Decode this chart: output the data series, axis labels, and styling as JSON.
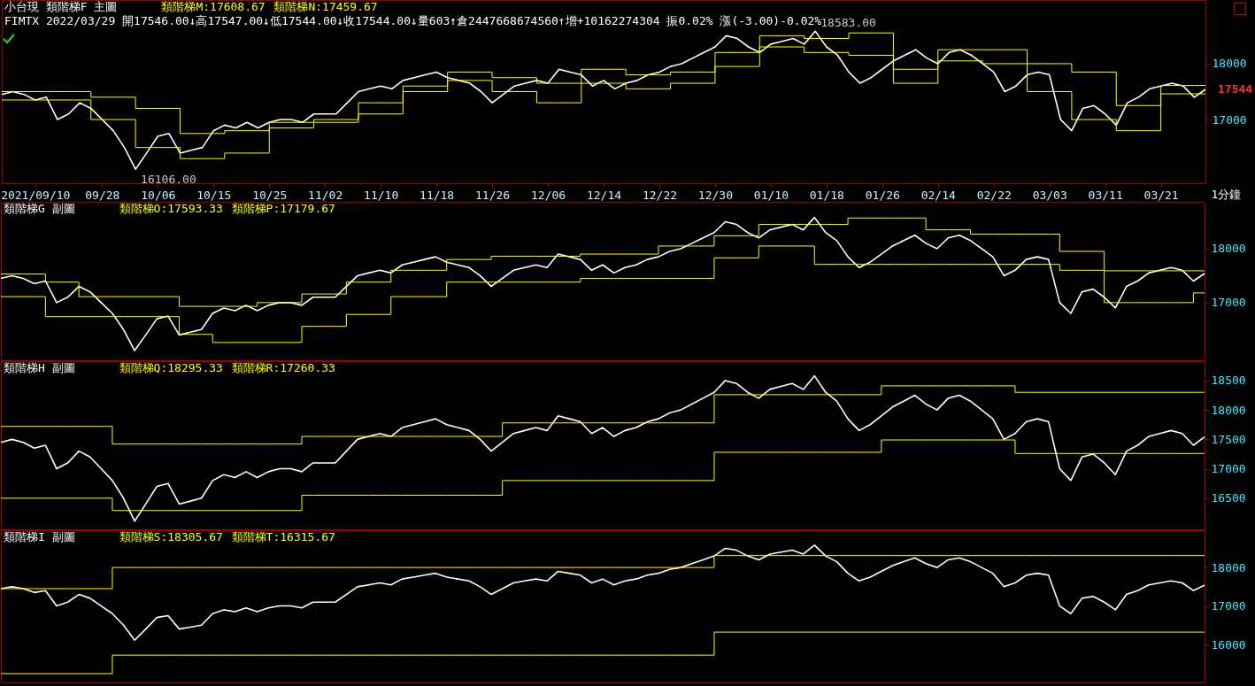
{
  "chart_data": [
    {
      "type": "line",
      "title": "小台現 類階梯F 主圖",
      "subtitle": "FIMTX 2022/03/29 開17546.00↓高17547.00↓低17544.00↓收17544.00↓量603↑倉2447668674560↑增+10162274304 振0.02% 漲(-3.00)-0.02%",
      "xlabel": "1分鐘",
      "categories": [
        null,
        null,
        null,
        "2021/09/10",
        null,
        null,
        null,
        null,
        null,
        "09/28",
        null,
        null,
        null,
        null,
        "10/06",
        null,
        null,
        null,
        null,
        "10/15",
        null,
        null,
        null,
        null,
        "10/25",
        null,
        null,
        null,
        null,
        "11/02",
        null,
        null,
        null,
        null,
        "11/10",
        null,
        null,
        null,
        null,
        "11/18",
        null,
        null,
        null,
        null,
        "11/26",
        null,
        null,
        null,
        null,
        "12/06",
        null,
        null,
        null,
        null,
        "12/14",
        null,
        null,
        null,
        null,
        "12/22",
        null,
        null,
        null,
        null,
        "12/30",
        null,
        null,
        null,
        null,
        "01/10",
        null,
        null,
        null,
        null,
        "01/18",
        null,
        null,
        null,
        null,
        "01/26",
        null,
        null,
        null,
        null,
        "02/14",
        null,
        null,
        null,
        null,
        "02/22",
        null,
        null,
        null,
        null,
        "03/03",
        null,
        null,
        null,
        null,
        "03/11",
        null,
        null,
        null,
        null,
        "03/21",
        null,
        null,
        null,
        null
      ],
      "series": [
        {
          "color": "#ffffff",
          "values": [
            17450,
            17500,
            17450,
            17350,
            17400,
            17000,
            17100,
            17300,
            17200,
            17000,
            16800,
            16500,
            16110,
            16400,
            16700,
            16750,
            16400,
            16450,
            16500,
            16800,
            16900,
            16850,
            16950,
            16850,
            16950,
            17000,
            17000,
            16950,
            17100,
            17100,
            17100,
            17300,
            17500,
            17550,
            17600,
            17550,
            17700,
            17750,
            17800,
            17850,
            17750,
            17700,
            17650,
            17500,
            17300,
            17450,
            17600,
            17650,
            17700,
            17650,
            17900,
            17850,
            17800,
            17600,
            17700,
            17550,
            17650,
            17700,
            17800,
            17850,
            17950,
            18000,
            18100,
            18200,
            18300,
            18500,
            18450,
            18300,
            18200,
            18350,
            18400,
            18450,
            18350,
            18580,
            18300,
            18150,
            17850,
            17650,
            17750,
            17900,
            18050,
            18150,
            18250,
            18100,
            18000,
            18200,
            18250,
            18150,
            18000,
            17850,
            17500,
            17600,
            17800,
            17850,
            17800,
            17000,
            16800,
            17200,
            17250,
            17100,
            16900,
            17300,
            17400,
            17550,
            17600,
            17650,
            17600,
            17400,
            17540
          ]
        },
        {
          "type": "step",
          "color": "#ffff00",
          "values": [
            17500,
            17500,
            17500,
            17500,
            17500,
            17500,
            17500,
            17500,
            17400,
            17400,
            17400,
            17400,
            17200,
            17200,
            17200,
            17200,
            16750,
            16750,
            16750,
            16750,
            16800,
            16800,
            16800,
            16800,
            16950,
            16950,
            16950,
            16950,
            17000,
            17000,
            17000,
            17000,
            17300,
            17300,
            17300,
            17300,
            17600,
            17600,
            17600,
            17600,
            17850,
            17850,
            17850,
            17850,
            17750,
            17750,
            17750,
            17750,
            17650,
            17650,
            17650,
            17650,
            17900,
            17900,
            17900,
            17900,
            17800,
            17800,
            17800,
            17800,
            17850,
            17850,
            17850,
            17850,
            18200,
            18200,
            18200,
            18200,
            18500,
            18500,
            18500,
            18500,
            18450,
            18450,
            18450,
            18450,
            18550,
            18550,
            18550,
            18550,
            17900,
            17900,
            17900,
            17900,
            18250,
            18250,
            18250,
            18250,
            18250,
            18250,
            18250,
            18250,
            18000,
            18000,
            18000,
            18000,
            17850,
            17850,
            17850,
            17850,
            17250,
            17250,
            17250,
            17250,
            17610,
            17610,
            17610,
            17610,
            17610
          ]
        },
        {
          "type": "step",
          "color": "#ffff00",
          "values": [
            17350,
            17350,
            17350,
            17350,
            17350,
            17350,
            17350,
            17350,
            17000,
            17000,
            17000,
            17000,
            16500,
            16500,
            16500,
            16500,
            16300,
            16300,
            16300,
            16300,
            16400,
            16400,
            16400,
            16400,
            16850,
            16850,
            16850,
            16850,
            16950,
            16950,
            16950,
            16950,
            17100,
            17100,
            17100,
            17100,
            17500,
            17500,
            17500,
            17500,
            17700,
            17700,
            17700,
            17700,
            17500,
            17500,
            17500,
            17500,
            17300,
            17300,
            17300,
            17300,
            17650,
            17650,
            17650,
            17650,
            17550,
            17550,
            17550,
            17550,
            17650,
            17650,
            17650,
            17650,
            17950,
            17950,
            17950,
            17950,
            18300,
            18300,
            18300,
            18300,
            18200,
            18200,
            18200,
            18200,
            18150,
            18150,
            18150,
            18150,
            17650,
            17650,
            17650,
            17650,
            18050,
            18050,
            18050,
            18050,
            18000,
            18000,
            18000,
            18000,
            17500,
            17500,
            17500,
            17500,
            17000,
            17000,
            17000,
            17000,
            16800,
            16800,
            16800,
            16800,
            17460,
            17460,
            17460,
            17460,
            17460
          ]
        }
      ],
      "ylim": [
        15860,
        19140
      ],
      "yticks": [
        17000,
        18000
      ],
      "annotations": [
        "類階梯M:17608.67",
        "類階梯N:17459.67",
        "18583.00",
        "16106.00",
        "17544"
      ]
    },
    {
      "type": "line",
      "title": "類階梯G 副圖",
      "tick_labels": "y",
      "categories": [
        null,
        null,
        null,
        null,
        null,
        null,
        null,
        null,
        null,
        null,
        null,
        null,
        null,
        null,
        null,
        null,
        null,
        null,
        null,
        null,
        null,
        null,
        null,
        null,
        null,
        null,
        null,
        null,
        null,
        null,
        null,
        null,
        null,
        null,
        null,
        null,
        null,
        null,
        null,
        null,
        null,
        null,
        null,
        null,
        null,
        null,
        null,
        null,
        null,
        null,
        null,
        null,
        null,
        null,
        null,
        null,
        null,
        null,
        null,
        null,
        null,
        null,
        null,
        null,
        null,
        null,
        null,
        null,
        null,
        null,
        null,
        null,
        null,
        null,
        null,
        null,
        null,
        null,
        null,
        null,
        null,
        null,
        null,
        null,
        null,
        null,
        null,
        null,
        null,
        null,
        null,
        null,
        null,
        null,
        null,
        null,
        null,
        null,
        null,
        null,
        null,
        null,
        null,
        null,
        null,
        null,
        null,
        null,
        null
      ],
      "series": [
        {
          "color": "#ffffff",
          "values": [
            17450,
            17500,
            17450,
            17350,
            17400,
            17000,
            17100,
            17300,
            17200,
            17000,
            16800,
            16500,
            16110,
            16400,
            16700,
            16750,
            16400,
            16450,
            16500,
            16800,
            16900,
            16850,
            16950,
            16850,
            16950,
            17000,
            17000,
            16950,
            17100,
            17100,
            17100,
            17300,
            17500,
            17550,
            17600,
            17550,
            17700,
            17750,
            17800,
            17850,
            17750,
            17700,
            17650,
            17500,
            17300,
            17450,
            17600,
            17650,
            17700,
            17650,
            17900,
            17850,
            17800,
            17600,
            17700,
            17550,
            17650,
            17700,
            17800,
            17850,
            17950,
            18000,
            18100,
            18200,
            18300,
            18500,
            18450,
            18300,
            18200,
            18350,
            18400,
            18450,
            18350,
            18580,
            18300,
            18150,
            17850,
            17650,
            17750,
            17900,
            18050,
            18150,
            18250,
            18100,
            18000,
            18200,
            18250,
            18150,
            18000,
            17850,
            17500,
            17600,
            17800,
            17850,
            17800,
            17000,
            16800,
            17200,
            17250,
            17100,
            16900,
            17300,
            17400,
            17550,
            17600,
            17650,
            17600,
            17400,
            17540
          ]
        },
        {
          "type": "step",
          "color": "#ffff00",
          "values": [
            17530,
            17530,
            17530,
            17530,
            17380,
            17380,
            17380,
            17110,
            17110,
            17110,
            17110,
            17110,
            17110,
            17110,
            17110,
            17110,
            16930,
            16930,
            16930,
            16930,
            16930,
            16930,
            16930,
            17000,
            17000,
            17000,
            17000,
            17160,
            17160,
            17160,
            17160,
            17380,
            17380,
            17380,
            17380,
            17600,
            17600,
            17600,
            17600,
            17600,
            17800,
            17800,
            17800,
            17800,
            17860,
            17860,
            17860,
            17860,
            17860,
            17860,
            17860,
            17860,
            17900,
            17900,
            17900,
            17900,
            17900,
            17900,
            17900,
            18050,
            18050,
            18050,
            18050,
            18050,
            18240,
            18240,
            18240,
            18240,
            18450,
            18450,
            18450,
            18450,
            18450,
            18450,
            18450,
            18450,
            18570,
            18570,
            18570,
            18570,
            18570,
            18570,
            18570,
            18350,
            18350,
            18350,
            18350,
            18270,
            18270,
            18270,
            18270,
            18270,
            18270,
            18270,
            18270,
            17950,
            17950,
            17950,
            17950,
            17590,
            17590,
            17590,
            17590,
            17590,
            17590,
            17590,
            17590,
            17590,
            17590
          ]
        },
        {
          "type": "step",
          "color": "#ffff00",
          "values": [
            17110,
            17110,
            17110,
            17110,
            16740,
            16740,
            16740,
            16740,
            16740,
            16740,
            16740,
            16740,
            16740,
            16740,
            16740,
            16740,
            16410,
            16410,
            16410,
            16260,
            16260,
            16260,
            16260,
            16260,
            16260,
            16260,
            16260,
            16560,
            16560,
            16560,
            16560,
            16780,
            16780,
            16780,
            16780,
            17110,
            17110,
            17110,
            17110,
            17110,
            17380,
            17380,
            17380,
            17380,
            17380,
            17380,
            17380,
            17380,
            17380,
            17380,
            17380,
            17380,
            17450,
            17450,
            17450,
            17450,
            17450,
            17450,
            17450,
            17450,
            17450,
            17450,
            17450,
            17450,
            17830,
            17830,
            17830,
            17830,
            18050,
            18050,
            18050,
            18050,
            18050,
            17710,
            17710,
            17710,
            17710,
            17710,
            17710,
            17710,
            17710,
            17710,
            17710,
            17710,
            17710,
            17710,
            17710,
            17710,
            17710,
            17710,
            17710,
            17710,
            17710,
            17710,
            17710,
            17600,
            17600,
            17600,
            17600,
            17000,
            17000,
            17000,
            17000,
            17000,
            17000,
            17000,
            17000,
            17180,
            17180
          ]
        }
      ],
      "ylim": [
        15930,
        18870
      ],
      "yticks": [
        17000,
        18000
      ],
      "annotations": [
        "類階梯O:17593.33",
        "類階梯P:17179.67"
      ]
    },
    {
      "type": "line",
      "title": "類階梯H 副圖",
      "tick_labels": "y",
      "categories": [
        null,
        null,
        null,
        null,
        null,
        null,
        null,
        null,
        null,
        null,
        null,
        null,
        null,
        null,
        null,
        null,
        null,
        null,
        null,
        null,
        null,
        null,
        null,
        null,
        null,
        null,
        null,
        null,
        null,
        null,
        null,
        null,
        null,
        null,
        null,
        null,
        null,
        null,
        null,
        null,
        null,
        null,
        null,
        null,
        null,
        null,
        null,
        null,
        null,
        null,
        null,
        null,
        null,
        null,
        null,
        null,
        null,
        null,
        null,
        null,
        null,
        null,
        null,
        null,
        null,
        null,
        null,
        null,
        null,
        null,
        null,
        null,
        null,
        null,
        null,
        null,
        null,
        null,
        null,
        null,
        null,
        null,
        null,
        null,
        null,
        null,
        null,
        null,
        null,
        null,
        null,
        null,
        null,
        null,
        null,
        null,
        null,
        null,
        null,
        null,
        null,
        null,
        null,
        null,
        null,
        null,
        null,
        null,
        null
      ],
      "series": [
        {
          "color": "#ffffff",
          "values": [
            17450,
            17500,
            17450,
            17350,
            17400,
            17000,
            17100,
            17300,
            17200,
            17000,
            16800,
            16500,
            16110,
            16400,
            16700,
            16750,
            16400,
            16450,
            16500,
            16800,
            16900,
            16850,
            16950,
            16850,
            16950,
            17000,
            17000,
            16950,
            17100,
            17100,
            17100,
            17300,
            17500,
            17550,
            17600,
            17550,
            17700,
            17750,
            17800,
            17850,
            17750,
            17700,
            17650,
            17500,
            17300,
            17450,
            17600,
            17650,
            17700,
            17650,
            17900,
            17850,
            17800,
            17600,
            17700,
            17550,
            17650,
            17700,
            17800,
            17850,
            17950,
            18000,
            18100,
            18200,
            18300,
            18500,
            18450,
            18300,
            18200,
            18350,
            18400,
            18450,
            18350,
            18580,
            18300,
            18150,
            17850,
            17650,
            17750,
            17900,
            18050,
            18150,
            18250,
            18100,
            18000,
            18200,
            18250,
            18150,
            18000,
            17850,
            17500,
            17600,
            17800,
            17850,
            17800,
            17000,
            16800,
            17200,
            17250,
            17100,
            16900,
            17300,
            17400,
            17550,
            17600,
            17650,
            17600,
            17400,
            17540
          ]
        },
        {
          "type": "step",
          "color": "#ffff00",
          "values": [
            17720,
            17720,
            17720,
            17720,
            17720,
            17720,
            17720,
            17720,
            17720,
            17720,
            17420,
            17420,
            17420,
            17420,
            17420,
            17420,
            17420,
            17420,
            17420,
            17420,
            17420,
            17420,
            17420,
            17420,
            17420,
            17420,
            17420,
            17550,
            17550,
            17550,
            17550,
            17550,
            17550,
            17550,
            17550,
            17550,
            17550,
            17550,
            17550,
            17550,
            17550,
            17550,
            17550,
            17550,
            17550,
            17780,
            17780,
            17780,
            17780,
            17780,
            17780,
            17780,
            17780,
            17780,
            17780,
            17780,
            17780,
            17780,
            17780,
            17780,
            17780,
            17780,
            17780,
            17780,
            18260,
            18260,
            18260,
            18260,
            18260,
            18260,
            18260,
            18260,
            18260,
            18260,
            18260,
            18260,
            18260,
            18260,
            18260,
            18410,
            18410,
            18410,
            18410,
            18410,
            18410,
            18410,
            18410,
            18410,
            18410,
            18410,
            18410,
            18300,
            18300,
            18300,
            18300,
            18300,
            18300,
            18300,
            18300,
            18300,
            18300,
            18300,
            18300,
            18300,
            18300,
            18300,
            18300,
            18300,
            18300
          ]
        },
        {
          "type": "step",
          "color": "#ffff00",
          "values": [
            16500,
            16500,
            16500,
            16500,
            16500,
            16500,
            16500,
            16500,
            16500,
            16500,
            16290,
            16290,
            16290,
            16290,
            16290,
            16290,
            16290,
            16290,
            16290,
            16290,
            16290,
            16290,
            16290,
            16290,
            16290,
            16290,
            16290,
            16550,
            16550,
            16550,
            16550,
            16550,
            16550,
            16550,
            16550,
            16550,
            16550,
            16550,
            16550,
            16550,
            16550,
            16550,
            16550,
            16550,
            16550,
            16800,
            16800,
            16800,
            16800,
            16800,
            16800,
            16800,
            16800,
            16800,
            16800,
            16800,
            16800,
            16800,
            16800,
            16800,
            16800,
            16800,
            16800,
            16800,
            17280,
            17280,
            17280,
            17280,
            17280,
            17280,
            17280,
            17280,
            17280,
            17280,
            17280,
            17280,
            17280,
            17280,
            17280,
            17490,
            17490,
            17490,
            17490,
            17490,
            17490,
            17490,
            17490,
            17490,
            17490,
            17490,
            17490,
            17260,
            17260,
            17260,
            17260,
            17260,
            17260,
            17260,
            17260,
            17260,
            17260,
            17260,
            17260,
            17260,
            17260,
            17260,
            17260,
            17260,
            17260
          ]
        }
      ],
      "ylim": [
        15970,
        18830
      ],
      "yticks": [
        16500,
        17000,
        17500,
        18000,
        18500
      ],
      "annotations": [
        "類階梯Q:18295.33",
        "類階梯R:17260.33"
      ]
    },
    {
      "type": "line",
      "title": "類階梯I 副圖",
      "tick_labels": "y",
      "categories": [
        null,
        null,
        null,
        null,
        null,
        null,
        null,
        null,
        null,
        null,
        null,
        null,
        null,
        null,
        null,
        null,
        null,
        null,
        null,
        null,
        null,
        null,
        null,
        null,
        null,
        null,
        null,
        null,
        null,
        null,
        null,
        null,
        null,
        null,
        null,
        null,
        null,
        null,
        null,
        null,
        null,
        null,
        null,
        null,
        null,
        null,
        null,
        null,
        null,
        null,
        null,
        null,
        null,
        null,
        null,
        null,
        null,
        null,
        null,
        null,
        null,
        null,
        null,
        null,
        null,
        null,
        null,
        null,
        null,
        null,
        null,
        null,
        null,
        null,
        null,
        null,
        null,
        null,
        null,
        null,
        null,
        null,
        null,
        null,
        null,
        null,
        null,
        null,
        null,
        null,
        null,
        null,
        null,
        null,
        null,
        null,
        null,
        null,
        null,
        null,
        null,
        null,
        null,
        null,
        null,
        null,
        null,
        null,
        null
      ],
      "series": [
        {
          "color": "#ffffff",
          "values": [
            17450,
            17500,
            17450,
            17350,
            17400,
            17000,
            17100,
            17300,
            17200,
            17000,
            16800,
            16500,
            16110,
            16400,
            16700,
            16750,
            16400,
            16450,
            16500,
            16800,
            16900,
            16850,
            16950,
            16850,
            16950,
            17000,
            17000,
            16950,
            17100,
            17100,
            17100,
            17300,
            17500,
            17550,
            17600,
            17550,
            17700,
            17750,
            17800,
            17850,
            17750,
            17700,
            17650,
            17500,
            17300,
            17450,
            17600,
            17650,
            17700,
            17650,
            17900,
            17850,
            17800,
            17600,
            17700,
            17550,
            17650,
            17700,
            17800,
            17850,
            17950,
            18000,
            18100,
            18200,
            18300,
            18500,
            18450,
            18300,
            18200,
            18350,
            18400,
            18450,
            18350,
            18580,
            18300,
            18150,
            17850,
            17650,
            17750,
            17900,
            18050,
            18150,
            18250,
            18100,
            18000,
            18200,
            18250,
            18150,
            18000,
            17850,
            17500,
            17600,
            17800,
            17850,
            17800,
            17000,
            16800,
            17200,
            17250,
            17100,
            16900,
            17300,
            17400,
            17550,
            17600,
            17650,
            17600,
            17400,
            17540
          ]
        },
        {
          "type": "step",
          "color": "#ffff00",
          "values": [
            17450,
            17450,
            17450,
            17450,
            17450,
            17450,
            17450,
            17450,
            17450,
            17450,
            18000,
            18000,
            18000,
            18000,
            18000,
            18000,
            18000,
            18000,
            18000,
            18000,
            18000,
            18000,
            18000,
            18000,
            18000,
            18000,
            18000,
            18000,
            18000,
            18000,
            18000,
            18000,
            18000,
            18000,
            18000,
            18000,
            18000,
            18000,
            18000,
            18000,
            18000,
            18000,
            18000,
            18000,
            18000,
            18000,
            18000,
            18000,
            18000,
            18000,
            18000,
            18000,
            18000,
            18000,
            18000,
            18000,
            18000,
            18000,
            18000,
            18000,
            18000,
            18000,
            18000,
            18000,
            18310,
            18310,
            18310,
            18310,
            18310,
            18310,
            18310,
            18310,
            18310,
            18310,
            18310,
            18310,
            18310,
            18310,
            18310,
            18310,
            18310,
            18310,
            18310,
            18310,
            18310,
            18310,
            18310,
            18310,
            18310,
            18310,
            18310,
            18310,
            18310,
            18310,
            18310,
            18310,
            18310,
            18310,
            18310,
            18310,
            18310,
            18310,
            18310,
            18310,
            18310,
            18310,
            18310,
            18310,
            18310
          ]
        },
        {
          "type": "step",
          "color": "#ffff00",
          "values": [
            15240,
            15240,
            15240,
            15240,
            15240,
            15240,
            15240,
            15240,
            15240,
            15240,
            15720,
            15720,
            15720,
            15720,
            15720,
            15720,
            15720,
            15720,
            15720,
            15720,
            15720,
            15720,
            15720,
            15720,
            15720,
            15720,
            15720,
            15720,
            15720,
            15720,
            15720,
            15720,
            15720,
            15720,
            15720,
            15720,
            15720,
            15720,
            15720,
            15720,
            15720,
            15720,
            15720,
            15720,
            15720,
            15720,
            15720,
            15720,
            15720,
            15720,
            15720,
            15720,
            15720,
            15720,
            15720,
            15720,
            15720,
            15720,
            15720,
            15720,
            15720,
            15720,
            15720,
            15720,
            16320,
            16320,
            16320,
            16320,
            16320,
            16320,
            16320,
            16320,
            16320,
            16320,
            16320,
            16320,
            16320,
            16320,
            16320,
            16320,
            16320,
            16320,
            16320,
            16320,
            16320,
            16320,
            16320,
            16320,
            16320,
            16320,
            16320,
            16320,
            16320,
            16320,
            16320,
            16320,
            16320,
            16320,
            16320,
            16320,
            16320,
            16320,
            16320,
            16320,
            16320,
            16320,
            16320,
            16320,
            16320
          ]
        }
      ],
      "ylim": [
        15010,
        18970
      ],
      "yticks": [
        16000,
        17000,
        18000
      ],
      "annotations": [
        "類階梯S:18305.67",
        "類階梯T:16315.67"
      ]
    }
  ]
}
